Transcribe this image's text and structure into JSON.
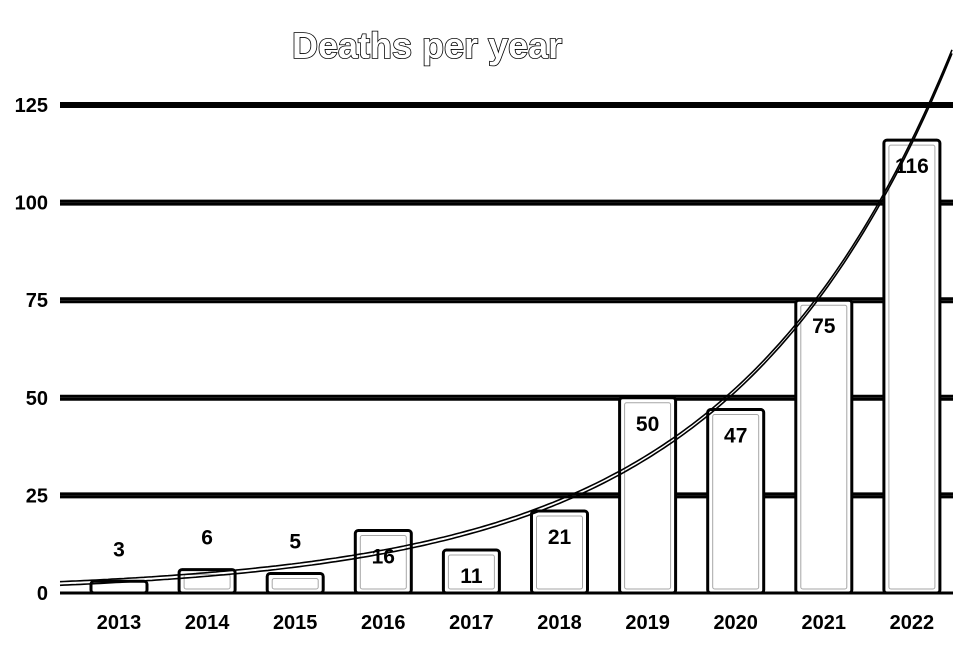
{
  "chart_data": {
    "type": "bar",
    "title": "Deaths per year",
    "categories": [
      "2013",
      "2014",
      "2015",
      "2016",
      "2017",
      "2018",
      "2019",
      "2020",
      "2021",
      "2022"
    ],
    "values": [
      3,
      6,
      5,
      16,
      11,
      21,
      50,
      47,
      75,
      116
    ],
    "data_labels": [
      "3",
      "6",
      "5",
      "16",
      "11",
      "21",
      "50",
      "47",
      "75",
      "116"
    ],
    "y_ticks": [
      "0",
      "25",
      "50",
      "75",
      "100",
      "125"
    ],
    "ylim": [
      0,
      125
    ],
    "xlabel": "",
    "ylabel": "",
    "grid": true,
    "trendline": "exponential",
    "colors": {
      "background": "#ffffff",
      "ink": "#000000"
    }
  }
}
